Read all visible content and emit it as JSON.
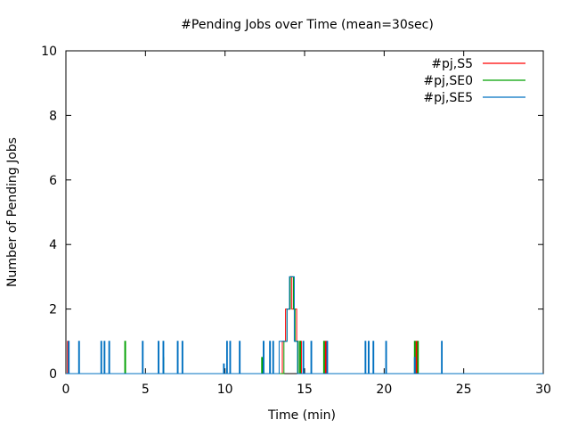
{
  "chart_data": {
    "type": "line",
    "title": "#Pending Jobs over Time (mean=30sec)",
    "xlabel": "Time (min)",
    "ylabel": "Number of Pending Jobs",
    "xlim": [
      0,
      30
    ],
    "ylim": [
      0,
      10
    ],
    "x_ticks": [
      0,
      5,
      10,
      15,
      20,
      25,
      30
    ],
    "y_ticks": [
      0,
      2,
      4,
      6,
      8,
      10
    ],
    "grid": false,
    "legend_position": "top-right",
    "series": [
      {
        "name": "#pj,S5",
        "color": "#ff0000",
        "points": [
          [
            0,
            0
          ],
          [
            0.1,
            0
          ],
          [
            0.1,
            1
          ],
          [
            0.15,
            1
          ],
          [
            0.15,
            0
          ],
          [
            13.6,
            0
          ],
          [
            13.6,
            1
          ],
          [
            13.8,
            1
          ],
          [
            13.8,
            2
          ],
          [
            14.1,
            2
          ],
          [
            14.1,
            3
          ],
          [
            14.2,
            3
          ],
          [
            14.2,
            2
          ],
          [
            14.5,
            2
          ],
          [
            14.5,
            1
          ],
          [
            14.6,
            1
          ],
          [
            14.6,
            0
          ],
          [
            14.75,
            0
          ],
          [
            14.75,
            1
          ],
          [
            14.8,
            1
          ],
          [
            14.8,
            0
          ],
          [
            16.3,
            0
          ],
          [
            16.3,
            1
          ],
          [
            16.35,
            1
          ],
          [
            16.35,
            0
          ],
          [
            22,
            0
          ],
          [
            22,
            1
          ],
          [
            22.05,
            1
          ],
          [
            22.05,
            0
          ],
          [
            30,
            0
          ]
        ]
      },
      {
        "name": "#pj,SE0",
        "color": "#00a000",
        "points": [
          [
            0,
            0
          ],
          [
            3.7,
            0
          ],
          [
            3.7,
            1
          ],
          [
            3.75,
            1
          ],
          [
            3.75,
            0
          ],
          [
            6.1,
            0
          ],
          [
            6.1,
            0.5
          ],
          [
            6.15,
            0.5
          ],
          [
            6.15,
            0
          ],
          [
            12.3,
            0
          ],
          [
            12.3,
            0.5
          ],
          [
            12.35,
            0.5
          ],
          [
            12.35,
            0
          ],
          [
            13.7,
            0
          ],
          [
            13.7,
            1
          ],
          [
            13.9,
            1
          ],
          [
            13.9,
            2
          ],
          [
            14.1,
            2
          ],
          [
            14.1,
            3
          ],
          [
            14.3,
            3
          ],
          [
            14.3,
            2
          ],
          [
            14.4,
            2
          ],
          [
            14.4,
            1
          ],
          [
            14.6,
            1
          ],
          [
            14.6,
            0
          ],
          [
            14.7,
            0
          ],
          [
            14.7,
            1
          ],
          [
            14.75,
            1
          ],
          [
            14.75,
            0
          ],
          [
            16.2,
            0
          ],
          [
            16.2,
            1
          ],
          [
            16.25,
            1
          ],
          [
            16.25,
            0
          ],
          [
            21.9,
            0
          ],
          [
            21.9,
            1
          ],
          [
            21.95,
            1
          ],
          [
            21.95,
            0
          ],
          [
            22.1,
            0
          ],
          [
            22.1,
            1
          ],
          [
            22.15,
            1
          ],
          [
            22.15,
            0
          ],
          [
            30,
            0
          ]
        ]
      },
      {
        "name": "#pj,SE5",
        "color": "#0070c0",
        "points": [
          [
            0,
            0
          ],
          [
            0.15,
            0
          ],
          [
            0.15,
            1
          ],
          [
            0.2,
            1
          ],
          [
            0.2,
            0
          ],
          [
            0.8,
            0
          ],
          [
            0.8,
            1
          ],
          [
            0.85,
            1
          ],
          [
            0.85,
            0
          ],
          [
            2.2,
            0
          ],
          [
            2.2,
            1
          ],
          [
            2.25,
            1
          ],
          [
            2.25,
            0
          ],
          [
            2.4,
            0
          ],
          [
            2.4,
            1
          ],
          [
            2.45,
            1
          ],
          [
            2.45,
            0
          ],
          [
            2.7,
            0
          ],
          [
            2.7,
            1
          ],
          [
            2.75,
            1
          ],
          [
            2.75,
            0
          ],
          [
            4.8,
            0
          ],
          [
            4.8,
            1
          ],
          [
            4.85,
            1
          ],
          [
            4.85,
            0
          ],
          [
            5.8,
            0
          ],
          [
            5.8,
            1
          ],
          [
            5.85,
            1
          ],
          [
            5.85,
            0
          ],
          [
            6.1,
            0
          ],
          [
            6.1,
            1
          ],
          [
            6.15,
            1
          ],
          [
            6.15,
            0
          ],
          [
            7.0,
            0
          ],
          [
            7.0,
            1
          ],
          [
            7.05,
            1
          ],
          [
            7.05,
            0
          ],
          [
            7.3,
            0
          ],
          [
            7.3,
            1
          ],
          [
            7.35,
            1
          ],
          [
            7.35,
            0
          ],
          [
            9.9,
            0
          ],
          [
            9.9,
            0.3
          ],
          [
            9.95,
            0.3
          ],
          [
            9.95,
            0
          ],
          [
            10.1,
            0
          ],
          [
            10.1,
            1
          ],
          [
            10.15,
            1
          ],
          [
            10.15,
            0
          ],
          [
            10.3,
            0
          ],
          [
            10.3,
            1
          ],
          [
            10.35,
            1
          ],
          [
            10.35,
            0
          ],
          [
            10.9,
            0
          ],
          [
            10.9,
            1
          ],
          [
            10.95,
            1
          ],
          [
            10.95,
            0
          ],
          [
            12.4,
            0
          ],
          [
            12.4,
            1
          ],
          [
            12.45,
            1
          ],
          [
            12.45,
            0
          ],
          [
            12.8,
            0
          ],
          [
            12.8,
            1
          ],
          [
            12.85,
            1
          ],
          [
            12.85,
            0
          ],
          [
            13.0,
            0
          ],
          [
            13.0,
            1
          ],
          [
            13.05,
            1
          ],
          [
            13.05,
            0
          ],
          [
            13.4,
            0
          ],
          [
            13.4,
            1
          ],
          [
            13.9,
            1
          ],
          [
            13.9,
            2
          ],
          [
            14.05,
            2
          ],
          [
            14.05,
            3
          ],
          [
            14.35,
            3
          ],
          [
            14.35,
            1
          ],
          [
            14.55,
            1
          ],
          [
            14.55,
            0
          ],
          [
            14.9,
            0
          ],
          [
            14.9,
            1
          ],
          [
            14.95,
            1
          ],
          [
            14.95,
            0
          ],
          [
            15.4,
            0
          ],
          [
            15.4,
            1
          ],
          [
            15.45,
            1
          ],
          [
            15.45,
            0
          ],
          [
            16.4,
            0
          ],
          [
            16.4,
            1
          ],
          [
            16.45,
            1
          ],
          [
            16.45,
            0
          ],
          [
            18.8,
            0
          ],
          [
            18.8,
            1
          ],
          [
            18.85,
            1
          ],
          [
            18.85,
            0
          ],
          [
            19.0,
            0
          ],
          [
            19.0,
            1
          ],
          [
            19.05,
            1
          ],
          [
            19.05,
            0
          ],
          [
            19.3,
            0
          ],
          [
            19.3,
            1
          ],
          [
            19.35,
            1
          ],
          [
            19.35,
            0
          ],
          [
            20.1,
            0
          ],
          [
            20.1,
            1
          ],
          [
            20.15,
            1
          ],
          [
            20.15,
            0
          ],
          [
            21.9,
            0
          ],
          [
            21.9,
            0.5
          ],
          [
            21.95,
            0.5
          ],
          [
            21.95,
            0
          ],
          [
            23.6,
            0
          ],
          [
            23.6,
            1
          ],
          [
            23.65,
            1
          ],
          [
            23.65,
            0
          ],
          [
            30,
            0
          ]
        ]
      }
    ]
  }
}
